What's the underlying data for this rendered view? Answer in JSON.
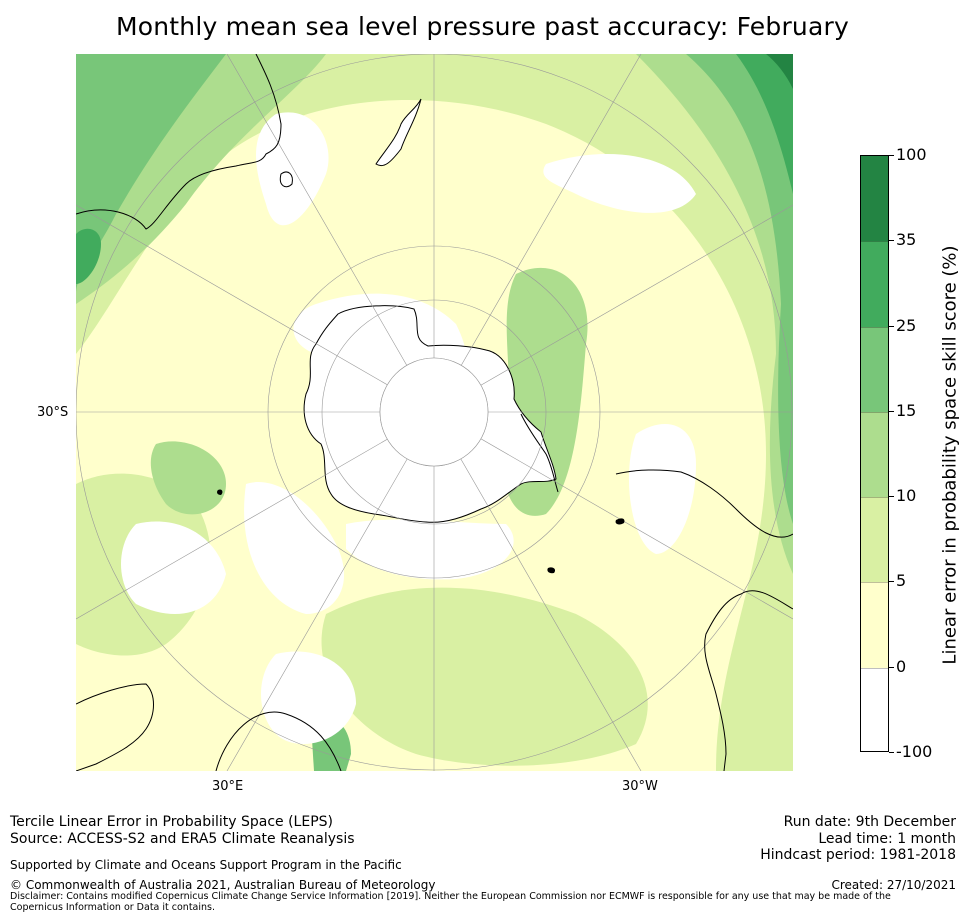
{
  "title": "Monthly mean sea level pressure past accuracy: February",
  "map": {
    "projection": "south-polar-stereographic",
    "latitude_label": "30°S",
    "longitude_labels": [
      "30°E",
      "30°W"
    ],
    "regions": [
      "Antarctica",
      "Australia",
      "New Zealand",
      "South America",
      "Southern Africa",
      "Madagascar"
    ]
  },
  "colorbar": {
    "label": "Linear error in probability space skill score (%)",
    "ticks": [
      "100",
      "35",
      "25",
      "15",
      "10",
      "5",
      "0",
      "-100"
    ],
    "bins": [
      {
        "from": -100,
        "to": 0,
        "color": "#ffffff"
      },
      {
        "from": 0,
        "to": 5,
        "color": "#ffffcc"
      },
      {
        "from": 5,
        "to": 10,
        "color": "#d9f0a3"
      },
      {
        "from": 10,
        "to": 15,
        "color": "#addd8e"
      },
      {
        "from": 15,
        "to": 25,
        "color": "#78c679"
      },
      {
        "from": 25,
        "to": 35,
        "color": "#41ab5d"
      },
      {
        "from": 35,
        "to": 100,
        "color": "#238443"
      }
    ]
  },
  "footer": {
    "line1": "Tercile Linear Error in Probability Space (LEPS)",
    "line2": "Source: ACCESS-S2 and ERA5 Climate Reanalysis",
    "support": "Supported by Climate and Oceans Support Program in the Pacific",
    "copyright": "© Commonwealth of Australia 2021, Australian Bureau of Meteorology",
    "disclaimer": "Disclaimer: Contains modified Copernicus Climate Change Service Information [2019]. Neither the European Commission nor ECMWF is responsible for any use that may be made of the Copernicus Information or Data it contains.",
    "run_date": "Run date: 9th December",
    "lead_time": "Lead time: 1 month",
    "hindcast": "Hindcast period: 1981-2018",
    "created": "Created: 27/10/2021"
  }
}
